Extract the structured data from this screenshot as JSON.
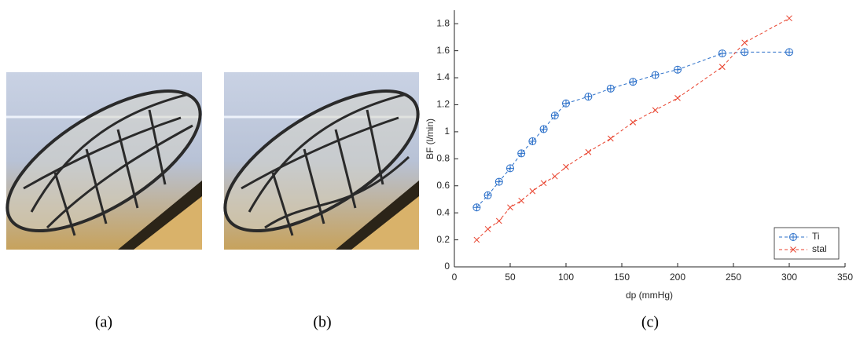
{
  "captions": [
    "(a)",
    "(b)",
    "(c)"
  ],
  "chart_data": {
    "type": "line",
    "xlabel": "dp (mmHg)",
    "ylabel": "BF (l/min)",
    "x": [
      20,
      30,
      40,
      50,
      60,
      70,
      80,
      90,
      100,
      120,
      140,
      160,
      180,
      200,
      240,
      260,
      300
    ],
    "series": [
      {
        "name": "Ti",
        "color": "#2a6fc9",
        "marker": "circle",
        "values": [
          0.44,
          0.53,
          0.63,
          0.73,
          0.84,
          0.93,
          1.02,
          1.12,
          1.21,
          1.26,
          1.32,
          1.37,
          1.42,
          1.46,
          1.58,
          1.59,
          1.59
        ]
      },
      {
        "name": "stal",
        "color": "#e8412c",
        "marker": "x",
        "values": [
          0.2,
          0.28,
          0.34,
          0.44,
          0.49,
          0.56,
          0.62,
          0.67,
          0.74,
          0.85,
          0.95,
          1.07,
          1.16,
          1.25,
          1.48,
          1.66,
          1.84
        ]
      }
    ],
    "xlim": [
      0,
      350
    ],
    "xticks": [
      0,
      50,
      100,
      150,
      200,
      250,
      300,
      350
    ],
    "ylim": [
      0,
      1.9
    ],
    "yticks": [
      0,
      0.2,
      0.4,
      0.6,
      0.8,
      1,
      1.2,
      1.4,
      1.6,
      1.8
    ],
    "grid": false,
    "legend": "lower right",
    "line_style": "dashed"
  }
}
